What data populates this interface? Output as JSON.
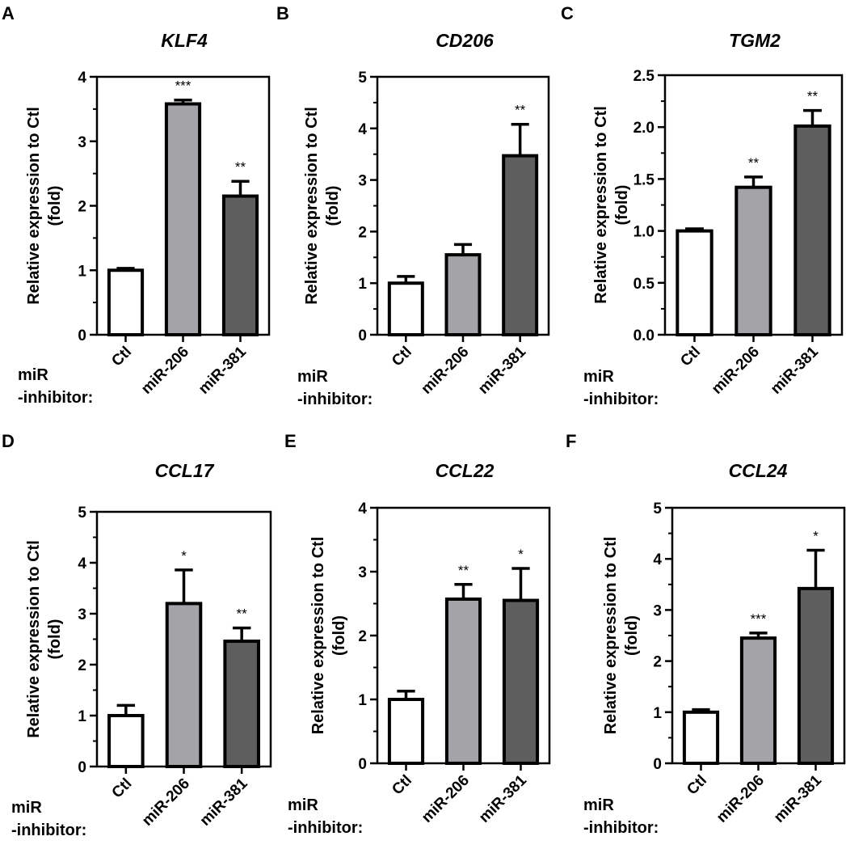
{
  "figure": {
    "group_label_line1": "miR",
    "group_label_line2": "-inhibitor:",
    "colors": {
      "Ctl": "#ffffff",
      "miR-206": "#a3a3a8",
      "miR-381": "#5e5e5e",
      "stroke": "#000000"
    }
  },
  "chart_data": [
    {
      "panel": "A",
      "type": "bar",
      "title": "KLF4",
      "ylabel": "Relative expression to Ctl (fold)",
      "ylabel_line1": "Relative expression to Ctl",
      "ylabel_line2": "(fold)",
      "categories": [
        "Ctl",
        "miR-206",
        "miR-381"
      ],
      "values": [
        1.0,
        3.58,
        2.15
      ],
      "error_upper": [
        1.03,
        3.64,
        2.38
      ],
      "significance": [
        "",
        "***",
        "**"
      ],
      "ylim": [
        0,
        4
      ],
      "yticks": [
        "0",
        "1",
        "2",
        "3",
        "4"
      ],
      "ytick_values": [
        0,
        1,
        2,
        3,
        4
      ],
      "minor_step": 0.5
    },
    {
      "panel": "B",
      "type": "bar",
      "title": "CD206",
      "ylabel": "Relative expression to Ctl (fold)",
      "ylabel_line1": "Relative expression to Ctl",
      "ylabel_line2": "(fold)",
      "categories": [
        "Ctl",
        "miR-206",
        "miR-381"
      ],
      "values": [
        1.0,
        1.55,
        3.47
      ],
      "error_upper": [
        1.13,
        1.75,
        4.08
      ],
      "significance": [
        "",
        "",
        "**"
      ],
      "ylim": [
        0,
        5
      ],
      "yticks": [
        "0",
        "1",
        "2",
        "3",
        "4",
        "5"
      ],
      "ytick_values": [
        0,
        1,
        2,
        3,
        4,
        5
      ],
      "minor_step": 0.5
    },
    {
      "panel": "C",
      "type": "bar",
      "title": "TGM2",
      "ylabel": "Relative expression to Ctl (fold)",
      "ylabel_line1": "Relative expression to Ctl",
      "ylabel_line2": "(fold)",
      "categories": [
        "Ctl",
        "miR-206",
        "miR-381"
      ],
      "values": [
        1.0,
        1.42,
        2.01
      ],
      "error_upper": [
        1.02,
        1.52,
        2.16
      ],
      "significance": [
        "",
        "**",
        "**"
      ],
      "ylim": [
        0,
        2.5
      ],
      "yticks": [
        "0.0",
        "0.5",
        "1.0",
        "1.5",
        "2.0",
        "2.5"
      ],
      "ytick_values": [
        0,
        0.5,
        1.0,
        1.5,
        2.0,
        2.5
      ],
      "minor_step": 0.25
    },
    {
      "panel": "D",
      "type": "bar",
      "title": "CCL17",
      "ylabel": "Relative expression to Ctl (fold)",
      "ylabel_line1": "Relative expression to Ctl",
      "ylabel_line2": "(fold)",
      "categories": [
        "Ctl",
        "miR-206",
        "miR-381"
      ],
      "values": [
        1.0,
        3.2,
        2.46
      ],
      "error_upper": [
        1.2,
        3.86,
        2.72
      ],
      "significance": [
        "",
        "*",
        "**"
      ],
      "ylim": [
        0,
        5
      ],
      "yticks": [
        "0",
        "1",
        "2",
        "3",
        "4",
        "5"
      ],
      "ytick_values": [
        0,
        1,
        2,
        3,
        4,
        5
      ],
      "minor_step": 0.5
    },
    {
      "panel": "E",
      "type": "bar",
      "title": "CCL22",
      "ylabel": "Relative expression to Ctl (fold)",
      "ylabel_line1": "Relative expression to Ctl",
      "ylabel_line2": "(fold)",
      "categories": [
        "Ctl",
        "miR-206",
        "miR-381"
      ],
      "values": [
        1.0,
        2.57,
        2.55
      ],
      "error_upper": [
        1.13,
        2.8,
        3.05
      ],
      "significance": [
        "",
        "**",
        "*"
      ],
      "ylim": [
        0,
        4
      ],
      "yticks": [
        "0",
        "1",
        "2",
        "3",
        "4"
      ],
      "ytick_values": [
        0,
        1,
        2,
        3,
        4
      ],
      "minor_step": 0.5
    },
    {
      "panel": "F",
      "type": "bar",
      "title": "CCL24",
      "ylabel": "Relative expression to Ctl (fold)",
      "ylabel_line1": "Relative expression to Ctl",
      "ylabel_line2": "(fold)",
      "categories": [
        "Ctl",
        "miR-206",
        "miR-381"
      ],
      "values": [
        1.0,
        2.45,
        3.42
      ],
      "error_upper": [
        1.05,
        2.55,
        4.17
      ],
      "significance": [
        "",
        "***",
        "*"
      ],
      "ylim": [
        0,
        5
      ],
      "yticks": [
        "0",
        "1",
        "2",
        "3",
        "4",
        "5"
      ],
      "ytick_values": [
        0,
        1,
        2,
        3,
        4,
        5
      ],
      "minor_step": 0.5
    }
  ]
}
